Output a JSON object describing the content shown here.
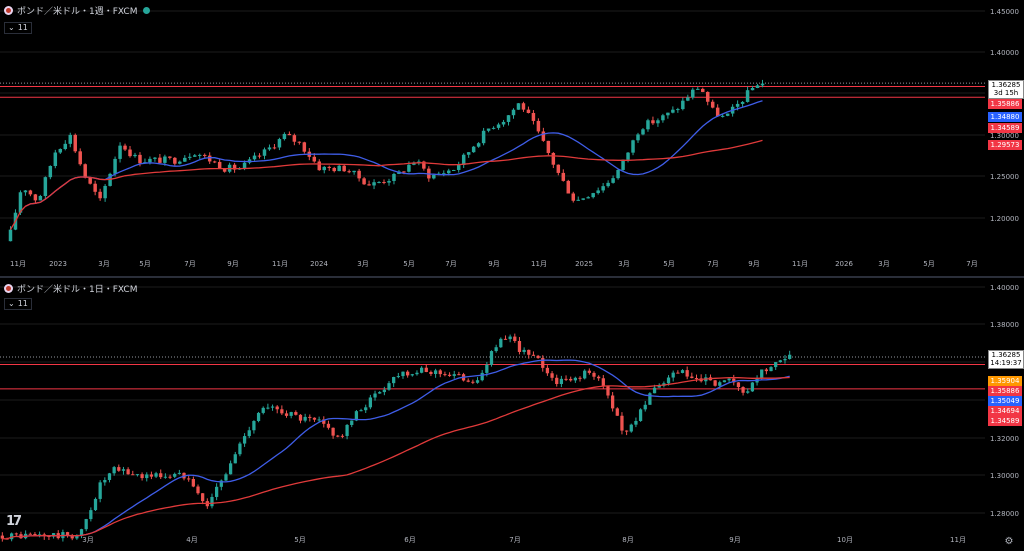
{
  "panes": [
    {
      "title": "ポンド／米ドル・1週・FXCM",
      "indicator": "11",
      "y_ticks": [
        "1.45000",
        "1.40000",
        "1.35000",
        "1.30000",
        "1.25000",
        "1.20000"
      ],
      "x_ticks": [
        "11月",
        "2023",
        "3月",
        "5月",
        "7月",
        "9月",
        "11月",
        "2024",
        "3月",
        "5月",
        "7月",
        "9月",
        "11月",
        "2025",
        "3月",
        "5月",
        "7月",
        "9月",
        "11月",
        "2026",
        "3月",
        "5月",
        "7月"
      ],
      "price_tag": {
        "price": "1.36285",
        "countdown": "3d 15h"
      },
      "level_tags": [
        {
          "label": "1.35886",
          "color": "#f23645"
        },
        {
          "label": "1.34880",
          "color": "#2962ff"
        },
        {
          "label": "1.34589",
          "color": "#f23645"
        },
        {
          "label": "1.29573",
          "color": "#f23645"
        }
      ],
      "chart_data": {
        "type": "candlestick",
        "title": "ポンド／米ドル・1週・FXCM",
        "ylim": [
          1.18,
          1.45
        ],
        "start_price": 1.14,
        "last_price": 1.36285,
        "horizontal_levels": [
          1.35886,
          1.34589
        ],
        "series": [
          {
            "name": "",
            "color": "#3f5de8",
            "kind": "ma_fast"
          },
          {
            "name": "",
            "color": "#e03a3a",
            "kind": "ma_slow"
          }
        ]
      }
    },
    {
      "title": "ポンド／米ドル・1日・FXCM",
      "indicator": "11",
      "y_ticks": [
        "1.40000",
        "1.38000",
        "1.36000",
        "1.34000",
        "1.32000",
        "1.30000",
        "1.28000"
      ],
      "x_ticks": [
        "3月",
        "4月",
        "5月",
        "6月",
        "7月",
        "8月",
        "9月",
        "10月",
        "11月"
      ],
      "price_tag": {
        "price": "1.36285",
        "countdown": "14:19:37"
      },
      "level_tags": [
        {
          "label": "1.35904",
          "color": "#ff9800"
        },
        {
          "label": "1.35886",
          "color": "#f23645"
        },
        {
          "label": "1.35049",
          "color": "#2962ff"
        },
        {
          "label": "1.34694",
          "color": "#f23645"
        },
        {
          "label": "1.34589",
          "color": "#f23645"
        }
      ],
      "chart_data": {
        "type": "candlestick",
        "title": "ポンド／米ドル・1日・FXCM",
        "ylim": [
          1.27,
          1.4
        ],
        "start_price": 1.268,
        "last_price": 1.36285,
        "horizontal_levels": [
          1.35886,
          1.34589
        ],
        "series": [
          {
            "name": "",
            "color": "#3f5de8",
            "kind": "ma_fast"
          },
          {
            "name": "",
            "color": "#e03a3a",
            "kind": "ma_slow"
          }
        ]
      }
    }
  ],
  "colors": {
    "up": "#26a69a",
    "down": "#ef5350",
    "bg": "#000000",
    "grid": "#1c1c1c"
  },
  "icons": {
    "settings": "gear-icon",
    "brand": "tradingview-logo"
  }
}
